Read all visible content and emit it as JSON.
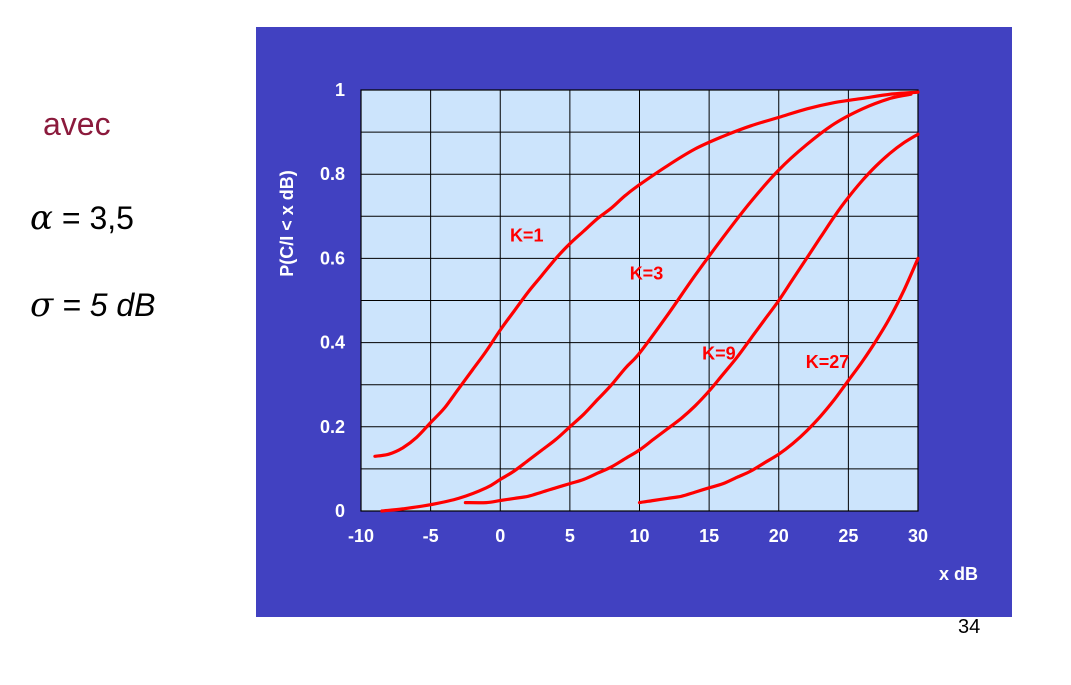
{
  "slide": {
    "intro": "avec",
    "params": [
      {
        "symbol": "α",
        "text": "= 3,5"
      },
      {
        "symbol": "σ",
        "text": "= 5 dB"
      }
    ],
    "page_number": "34"
  },
  "colors": {
    "panel": "#4141c1",
    "plot_area": "#cce4fc",
    "grid": "#000000",
    "curves": "#ff0000",
    "labels": "#ffffff"
  },
  "chart_data": {
    "type": "line",
    "title": "",
    "xlabel": "x dB",
    "ylabel": "P(C/I < x dB)",
    "xlim": [
      -10,
      30
    ],
    "ylim": [
      0,
      1
    ],
    "grid": true,
    "x_ticks": [
      -10,
      -5,
      0,
      5,
      10,
      15,
      20,
      25,
      30
    ],
    "x_tick_labels": [
      "-10",
      "-5",
      "0",
      "5",
      "10",
      "15",
      "20",
      "25",
      "30"
    ],
    "y_ticks": [
      0,
      0.2,
      0.4,
      0.6,
      0.8,
      1
    ],
    "y_tick_labels": [
      "0",
      "0.2",
      "0.4",
      "0.6",
      "0.8",
      "1"
    ],
    "series": [
      {
        "name": "K=1",
        "x": [
          -9,
          -8,
          -7,
          -6,
          -5,
          -4,
          -3,
          -2,
          -1,
          0,
          1,
          2,
          3,
          4,
          5,
          6,
          7,
          8,
          9,
          10,
          12,
          14,
          16,
          18,
          20,
          22,
          24,
          26,
          28,
          30
        ],
        "y": [
          0.13,
          0.135,
          0.15,
          0.175,
          0.21,
          0.245,
          0.29,
          0.335,
          0.38,
          0.43,
          0.475,
          0.52,
          0.56,
          0.6,
          0.635,
          0.665,
          0.695,
          0.72,
          0.75,
          0.775,
          0.82,
          0.86,
          0.89,
          0.915,
          0.935,
          0.955,
          0.97,
          0.98,
          0.99,
          0.995
        ]
      },
      {
        "name": "K=3",
        "x": [
          -8.5,
          -7,
          -5,
          -3,
          -1,
          0,
          1,
          2,
          3,
          4,
          5,
          6,
          7,
          8,
          9,
          10,
          12,
          14,
          16,
          18,
          20,
          22,
          24,
          26,
          28,
          29.5
        ],
        "y": [
          0.0,
          0.005,
          0.015,
          0.03,
          0.055,
          0.075,
          0.095,
          0.12,
          0.145,
          0.17,
          0.2,
          0.23,
          0.265,
          0.3,
          0.34,
          0.375,
          0.465,
          0.56,
          0.65,
          0.735,
          0.81,
          0.87,
          0.92,
          0.955,
          0.98,
          0.99
        ]
      },
      {
        "name": "K=9",
        "x": [
          -2.5,
          -1,
          0,
          1,
          2,
          3,
          4,
          5,
          6,
          7,
          8,
          9,
          10,
          11,
          12,
          13,
          14,
          15,
          16,
          17,
          18,
          19,
          20,
          21,
          22,
          23,
          24,
          25,
          26,
          27,
          28,
          29,
          30
        ],
        "y": [
          0.02,
          0.02,
          0.025,
          0.03,
          0.035,
          0.045,
          0.055,
          0.065,
          0.075,
          0.09,
          0.105,
          0.125,
          0.145,
          0.17,
          0.195,
          0.22,
          0.25,
          0.285,
          0.325,
          0.365,
          0.41,
          0.455,
          0.5,
          0.55,
          0.6,
          0.65,
          0.7,
          0.745,
          0.785,
          0.82,
          0.85,
          0.875,
          0.895
        ]
      },
      {
        "name": "K=27",
        "x": [
          10,
          11,
          12,
          13,
          14,
          15,
          16,
          17,
          18,
          19,
          20,
          21,
          22,
          23,
          24,
          25,
          26,
          27,
          28,
          29,
          30
        ],
        "y": [
          0.02,
          0.025,
          0.03,
          0.035,
          0.045,
          0.055,
          0.065,
          0.08,
          0.095,
          0.115,
          0.135,
          0.16,
          0.19,
          0.225,
          0.265,
          0.31,
          0.355,
          0.405,
          0.46,
          0.525,
          0.6
        ]
      }
    ]
  }
}
